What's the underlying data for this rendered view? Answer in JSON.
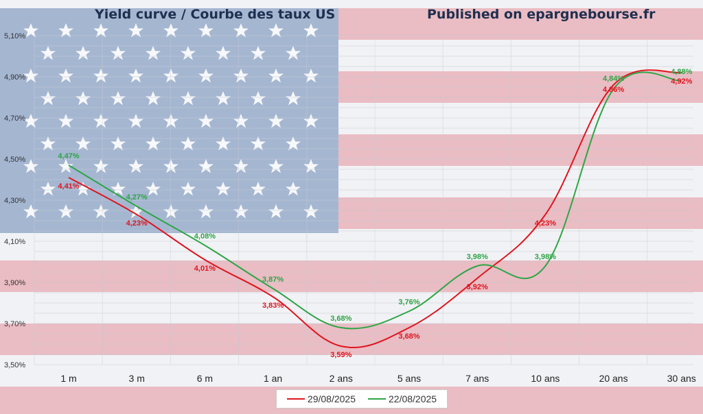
{
  "titles": {
    "left": "Yield curve / Courbe des taux US",
    "right": "Published on epargnebourse.fr"
  },
  "chart_data": {
    "type": "line",
    "categories": [
      "1 m",
      "3 m",
      "6 m",
      "1 an",
      "2 ans",
      "5 ans",
      "7 ans",
      "10 ans",
      "20 ans",
      "30 ans"
    ],
    "y_ticks": [
      "3,50%",
      "3,70%",
      "3,90%",
      "4,10%",
      "4,30%",
      "4,50%",
      "4,70%",
      "4,90%",
      "5,10%"
    ],
    "ylim": [
      3.5,
      5.1
    ],
    "series": [
      {
        "name": "29/08/2025",
        "color": "#e0141e",
        "values": [
          4.41,
          4.23,
          4.01,
          3.83,
          3.59,
          3.68,
          3.92,
          4.23,
          4.86,
          4.92
        ],
        "labels": [
          "4,41%",
          "4,23%",
          "4,01%",
          "3,83%",
          "3,59%",
          "3,68%",
          "3,92%",
          "4,23%",
          "4,86%",
          "4,92%"
        ]
      },
      {
        "name": "22/08/2025",
        "color": "#2ca545",
        "values": [
          4.47,
          4.27,
          4.08,
          3.87,
          3.68,
          3.76,
          3.98,
          3.98,
          4.84,
          4.88
        ],
        "labels": [
          "4,47%",
          "4,27%",
          "4,08%",
          "3,87%",
          "3,68%",
          "3,76%",
          "3,98%",
          "3,98%",
          "4,84%",
          "4,88%"
        ]
      }
    ],
    "legend_position": "bottom",
    "grid": true,
    "background": "US flag"
  }
}
